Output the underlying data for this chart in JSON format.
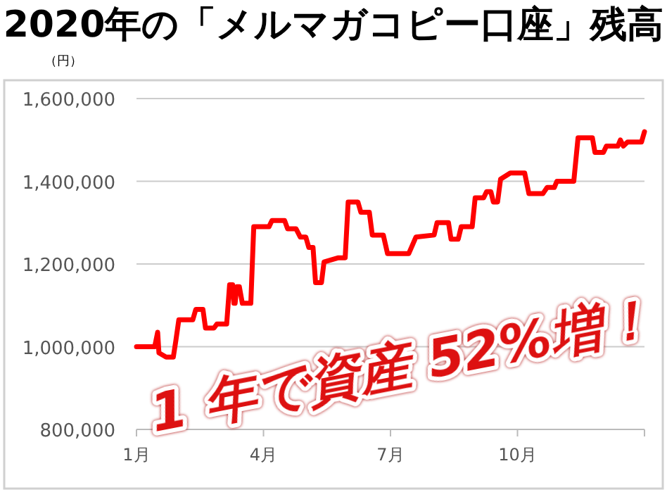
{
  "chart_data": {
    "type": "line",
    "title": "2020年の「メルマガコピー口座」残高",
    "ylabel": "（円）",
    "annotations": [
      "1 年で資産 52%増！"
    ],
    "x": [
      1.0,
      1.43,
      1.5,
      1.53,
      1.7,
      1.87,
      1.93,
      2.0,
      2.33,
      2.4,
      2.57,
      2.63,
      2.83,
      2.9,
      3.13,
      3.2,
      3.27,
      3.3,
      3.33,
      3.37,
      3.43,
      3.5,
      3.7,
      3.77,
      4.13,
      4.2,
      4.5,
      4.57,
      4.77,
      4.87,
      5.0,
      5.07,
      5.17,
      5.23,
      5.37,
      5.43,
      5.77,
      5.93,
      6.0,
      6.23,
      6.3,
      6.5,
      6.57,
      6.83,
      6.93,
      7.43,
      7.6,
      8.03,
      8.1,
      8.37,
      8.43,
      8.6,
      8.67,
      8.93,
      9.0,
      9.2,
      9.27,
      9.37,
      9.43,
      9.53,
      9.6,
      9.83,
      10.17,
      10.27,
      10.6,
      10.7,
      10.87,
      10.93,
      11.33,
      11.43,
      11.77,
      11.83,
      12.03,
      12.1,
      12.37,
      12.43,
      12.5,
      12.6,
      12.93,
      13.0
    ],
    "series": [
      {
        "color": "#ff0000",
        "values": [
          1000000,
          1000000,
          1035000,
          985000,
          975000,
          975000,
          1015000,
          1065000,
          1065000,
          1090000,
          1090000,
          1045000,
          1045000,
          1055000,
          1055000,
          1150000,
          1150000,
          1105000,
          1105000,
          1145000,
          1145000,
          1105000,
          1105000,
          1290000,
          1290000,
          1305000,
          1305000,
          1285000,
          1285000,
          1265000,
          1265000,
          1240000,
          1240000,
          1155000,
          1155000,
          1205000,
          1215000,
          1215000,
          1350000,
          1350000,
          1325000,
          1325000,
          1270000,
          1270000,
          1225000,
          1225000,
          1265000,
          1270000,
          1300000,
          1300000,
          1260000,
          1260000,
          1290000,
          1290000,
          1360000,
          1360000,
          1375000,
          1375000,
          1350000,
          1350000,
          1405000,
          1420000,
          1420000,
          1370000,
          1370000,
          1385000,
          1385000,
          1400000,
          1400000,
          1505000,
          1505000,
          1470000,
          1470000,
          1485000,
          1485000,
          1500000,
          1485000,
          1495000,
          1495000,
          1520000
        ]
      }
    ],
    "xlim": [
      1,
      13
    ],
    "xticks": [
      {
        "value": 1,
        "label": "1月"
      },
      {
        "value": 4,
        "label": "4月"
      },
      {
        "value": 7,
        "label": "7月"
      },
      {
        "value": 10,
        "label": "10月"
      },
      {
        "value": 13,
        "label": null
      }
    ],
    "ylim": [
      800000,
      1600000
    ],
    "yticks": [
      {
        "value": 800000,
        "label": "800,000"
      },
      {
        "value": 1000000,
        "label": "1,000,000"
      },
      {
        "value": 1200000,
        "label": "1,200,000"
      },
      {
        "value": 1400000,
        "label": "1,400,000"
      },
      {
        "value": 1600000,
        "label": "1,600,000"
      }
    ],
    "grid": "y",
    "marker": "none",
    "line_style": "solid"
  }
}
